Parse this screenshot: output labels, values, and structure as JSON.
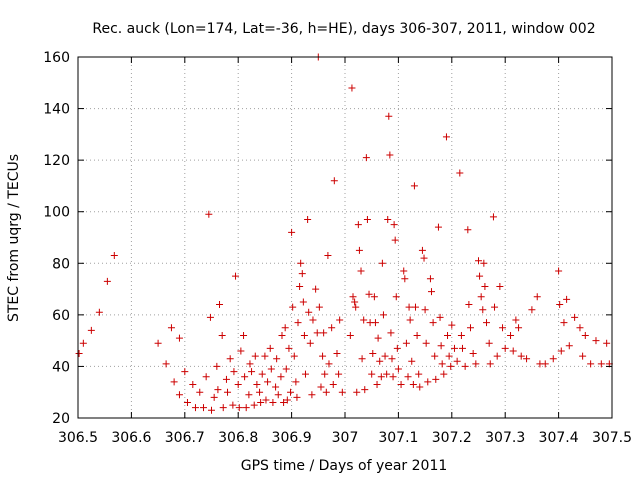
{
  "chart_data": {
    "type": "scatter",
    "title": "Rec. auck (Lon=174, Lat=-36, h=HE), days 306-307, 2011, window 002",
    "xlabel": "GPS time / Days of year 2011",
    "ylabel": "STEC from uqrg / TECUs",
    "xlim": [
      306.5,
      307.5
    ],
    "ylim": [
      20,
      160
    ],
    "x_ticks": [
      "306.5",
      "306.6",
      "306.7",
      "306.8",
      "306.9",
      "307",
      "307.1",
      "307.2",
      "307.3",
      "307.4",
      "307.5"
    ],
    "y_ticks": [
      "20",
      "40",
      "60",
      "80",
      "100",
      "120",
      "140",
      "160"
    ],
    "grid": true,
    "legend": "none",
    "marker": "+",
    "marker_color": "#cc0000",
    "points": [
      [
        306.502,
        45
      ],
      [
        306.51,
        49
      ],
      [
        306.525,
        54
      ],
      [
        306.54,
        61
      ],
      [
        306.555,
        73
      ],
      [
        306.568,
        83
      ],
      [
        306.65,
        49
      ],
      [
        306.665,
        41
      ],
      [
        306.675,
        55
      ],
      [
        306.68,
        34
      ],
      [
        306.69,
        51
      ],
      [
        306.69,
        29
      ],
      [
        306.7,
        38
      ],
      [
        306.705,
        26
      ],
      [
        306.715,
        33
      ],
      [
        306.72,
        24
      ],
      [
        306.728,
        30
      ],
      [
        306.735,
        24
      ],
      [
        306.74,
        36
      ],
      [
        306.745,
        99
      ],
      [
        306.748,
        59
      ],
      [
        306.75,
        23
      ],
      [
        306.755,
        28
      ],
      [
        306.76,
        40
      ],
      [
        306.762,
        31
      ],
      [
        306.765,
        64
      ],
      [
        306.77,
        52
      ],
      [
        306.772,
        24
      ],
      [
        306.778,
        35
      ],
      [
        306.78,
        30
      ],
      [
        306.785,
        43
      ],
      [
        306.79,
        25
      ],
      [
        306.792,
        38
      ],
      [
        306.795,
        75
      ],
      [
        306.8,
        33
      ],
      [
        306.802,
        24
      ],
      [
        306.805,
        46
      ],
      [
        306.81,
        52
      ],
      [
        306.812,
        36
      ],
      [
        306.815,
        24
      ],
      [
        306.82,
        29
      ],
      [
        306.822,
        41
      ],
      [
        306.825,
        38
      ],
      [
        306.83,
        25
      ],
      [
        306.832,
        44
      ],
      [
        306.835,
        33
      ],
      [
        306.84,
        30
      ],
      [
        306.842,
        26
      ],
      [
        306.845,
        37
      ],
      [
        306.85,
        44
      ],
      [
        306.852,
        27
      ],
      [
        306.855,
        34
      ],
      [
        306.86,
        47
      ],
      [
        306.862,
        39
      ],
      [
        306.865,
        26
      ],
      [
        306.87,
        32
      ],
      [
        306.872,
        43
      ],
      [
        306.875,
        29
      ],
      [
        306.88,
        36
      ],
      [
        306.882,
        52
      ],
      [
        306.885,
        26
      ],
      [
        306.888,
        55
      ],
      [
        306.89,
        39
      ],
      [
        306.892,
        27
      ],
      [
        306.895,
        47
      ],
      [
        306.898,
        30
      ],
      [
        306.9,
        92
      ],
      [
        306.902,
        63
      ],
      [
        306.905,
        44
      ],
      [
        306.908,
        34
      ],
      [
        306.91,
        28
      ],
      [
        306.912,
        57
      ],
      [
        306.915,
        71
      ],
      [
        306.917,
        80
      ],
      [
        306.92,
        76
      ],
      [
        306.922,
        65
      ],
      [
        306.924,
        52
      ],
      [
        306.926,
        37
      ],
      [
        306.93,
        97
      ],
      [
        306.932,
        61
      ],
      [
        306.935,
        49
      ],
      [
        306.938,
        29
      ],
      [
        306.94,
        58
      ],
      [
        306.945,
        70
      ],
      [
        306.948,
        53
      ],
      [
        306.95,
        160
      ],
      [
        306.952,
        63
      ],
      [
        306.955,
        32
      ],
      [
        306.958,
        44
      ],
      [
        306.96,
        53
      ],
      [
        306.962,
        37
      ],
      [
        306.965,
        30
      ],
      [
        306.968,
        83
      ],
      [
        306.97,
        41
      ],
      [
        306.975,
        55
      ],
      [
        306.978,
        33
      ],
      [
        306.98,
        112
      ],
      [
        306.985,
        45
      ],
      [
        306.988,
        37
      ],
      [
        306.99,
        58
      ],
      [
        306.995,
        30
      ],
      [
        307.01,
        52
      ],
      [
        307.013,
        148
      ],
      [
        307.015,
        67
      ],
      [
        307.018,
        65
      ],
      [
        307.02,
        63
      ],
      [
        307.022,
        30
      ],
      [
        307.025,
        95
      ],
      [
        307.027,
        85
      ],
      [
        307.03,
        77
      ],
      [
        307.032,
        43
      ],
      [
        307.035,
        58
      ],
      [
        307.037,
        31
      ],
      [
        307.04,
        121
      ],
      [
        307.042,
        97
      ],
      [
        307.045,
        68
      ],
      [
        307.047,
        57
      ],
      [
        307.05,
        37
      ],
      [
        307.052,
        45
      ],
      [
        307.055,
        67
      ],
      [
        307.057,
        57
      ],
      [
        307.06,
        33
      ],
      [
        307.062,
        51
      ],
      [
        307.065,
        42
      ],
      [
        307.068,
        36
      ],
      [
        307.07,
        80
      ],
      [
        307.072,
        60
      ],
      [
        307.075,
        44
      ],
      [
        307.078,
        37
      ],
      [
        307.08,
        97
      ],
      [
        307.082,
        137
      ],
      [
        307.084,
        122
      ],
      [
        307.086,
        53
      ],
      [
        307.088,
        43
      ],
      [
        307.09,
        36
      ],
      [
        307.092,
        95
      ],
      [
        307.094,
        89
      ],
      [
        307.096,
        67
      ],
      [
        307.098,
        47
      ],
      [
        307.1,
        39
      ],
      [
        307.105,
        33
      ],
      [
        307.11,
        77
      ],
      [
        307.112,
        74
      ],
      [
        307.115,
        49
      ],
      [
        307.118,
        36
      ],
      [
        307.12,
        63
      ],
      [
        307.122,
        58
      ],
      [
        307.125,
        42
      ],
      [
        307.128,
        33
      ],
      [
        307.13,
        110
      ],
      [
        307.132,
        63
      ],
      [
        307.135,
        52
      ],
      [
        307.138,
        37
      ],
      [
        307.14,
        32
      ],
      [
        307.145,
        85
      ],
      [
        307.148,
        82
      ],
      [
        307.15,
        62
      ],
      [
        307.152,
        49
      ],
      [
        307.155,
        34
      ],
      [
        307.16,
        74
      ],
      [
        307.162,
        69
      ],
      [
        307.165,
        57
      ],
      [
        307.168,
        44
      ],
      [
        307.17,
        35
      ],
      [
        307.175,
        94
      ],
      [
        307.178,
        59
      ],
      [
        307.18,
        48
      ],
      [
        307.182,
        41
      ],
      [
        307.185,
        37
      ],
      [
        307.19,
        129
      ],
      [
        307.192,
        52
      ],
      [
        307.195,
        44
      ],
      [
        307.198,
        40
      ],
      [
        307.2,
        56
      ],
      [
        307.205,
        47
      ],
      [
        307.21,
        42
      ],
      [
        307.215,
        115
      ],
      [
        307.218,
        52
      ],
      [
        307.22,
        47
      ],
      [
        307.225,
        40
      ],
      [
        307.23,
        93
      ],
      [
        307.232,
        64
      ],
      [
        307.235,
        55
      ],
      [
        307.24,
        45
      ],
      [
        307.245,
        41
      ],
      [
        307.25,
        81
      ],
      [
        307.252,
        75
      ],
      [
        307.255,
        67
      ],
      [
        307.258,
        62
      ],
      [
        307.26,
        80
      ],
      [
        307.262,
        71
      ],
      [
        307.265,
        57
      ],
      [
        307.27,
        49
      ],
      [
        307.272,
        41
      ],
      [
        307.278,
        98
      ],
      [
        307.28,
        63
      ],
      [
        307.285,
        44
      ],
      [
        307.29,
        71
      ],
      [
        307.295,
        55
      ],
      [
        307.3,
        47
      ],
      [
        307.31,
        52
      ],
      [
        307.315,
        46
      ],
      [
        307.32,
        58
      ],
      [
        307.325,
        55
      ],
      [
        307.33,
        44
      ],
      [
        307.34,
        43
      ],
      [
        307.35,
        62
      ],
      [
        307.36,
        67
      ],
      [
        307.365,
        41
      ],
      [
        307.375,
        41
      ],
      [
        307.39,
        43
      ],
      [
        307.4,
        77
      ],
      [
        307.402,
        64
      ],
      [
        307.405,
        46
      ],
      [
        307.41,
        57
      ],
      [
        307.415,
        66
      ],
      [
        307.42,
        48
      ],
      [
        307.43,
        59
      ],
      [
        307.44,
        55
      ],
      [
        307.445,
        44
      ],
      [
        307.45,
        52
      ],
      [
        307.46,
        41
      ],
      [
        307.47,
        50
      ],
      [
        307.48,
        41
      ],
      [
        307.49,
        49
      ],
      [
        307.495,
        41
      ]
    ]
  }
}
